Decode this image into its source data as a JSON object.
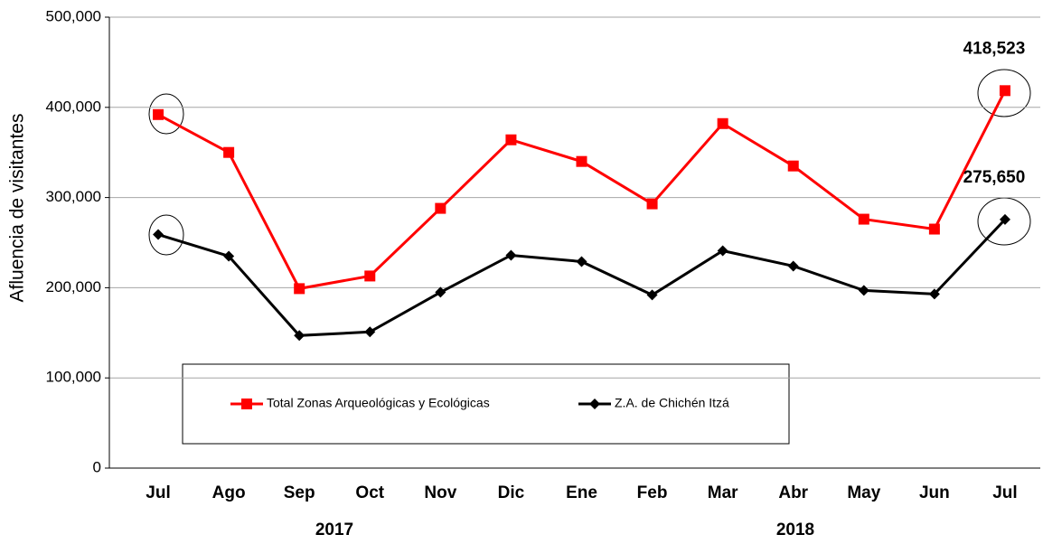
{
  "chart_data": {
    "type": "line",
    "y_label": "Afluencia de visitantes",
    "categories": [
      "Jul",
      "Ago",
      "Sep",
      "Oct",
      "Nov",
      "Dic",
      "Ene",
      "Feb",
      "Mar",
      "Abr",
      "May",
      "Jun",
      "Jul"
    ],
    "groups": [
      "2017",
      "2018"
    ],
    "series": [
      {
        "name": "Total Zonas Arqueológicas y Ecológicas",
        "color": "#ff0000",
        "marker": "square",
        "values": [
          392000,
          350000,
          199000,
          213000,
          288000,
          364000,
          340000,
          293000,
          382000,
          335000,
          276000,
          265000,
          418523
        ],
        "value_labels": [
          null,
          null,
          null,
          null,
          null,
          null,
          null,
          null,
          null,
          null,
          null,
          null,
          "418,523"
        ]
      },
      {
        "name": "Z.A. de Chichén Itzá",
        "color": "#000000",
        "marker": "diamond",
        "values": [
          259000,
          235000,
          147000,
          151000,
          195000,
          236000,
          229000,
          192000,
          241000,
          224000,
          197000,
          193000,
          275650
        ],
        "value_labels": [
          null,
          null,
          null,
          null,
          null,
          null,
          null,
          null,
          null,
          null,
          null,
          null,
          "275,650"
        ]
      }
    ],
    "ylim": [
      0,
      500000
    ],
    "yticks": [
      0,
      {
        "value": 100000,
        "label": "100,000"
      },
      {
        "value": 200000,
        "label": "200,000"
      },
      {
        "value": 300000,
        "label": "300,000"
      },
      {
        "value": 400000,
        "label": "400,000"
      },
      {
        "value": 500000,
        "label": "500,000"
      }
    ],
    "grid": true
  }
}
